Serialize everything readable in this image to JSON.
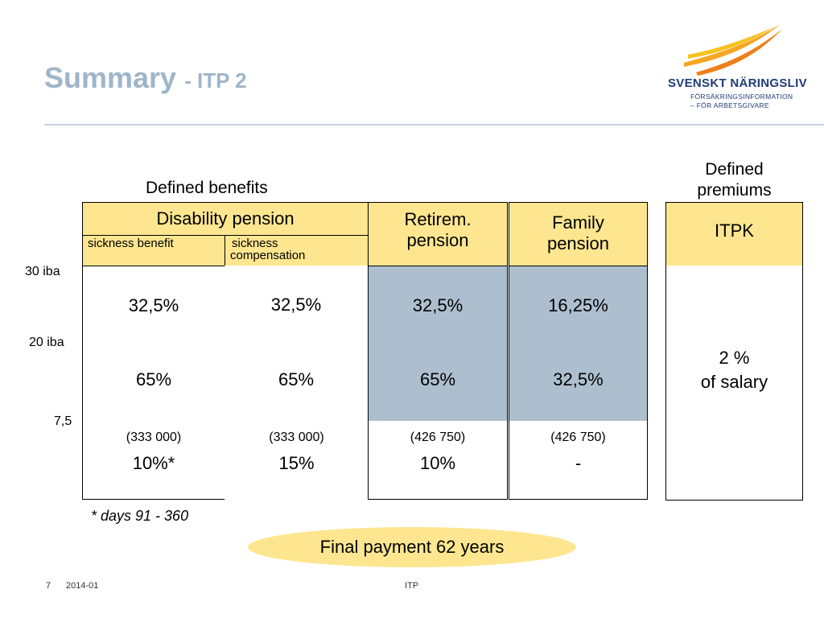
{
  "header": {
    "title_main": "Summary",
    "title_sub": "- ITP 2",
    "logo_name": "SVENSKT NÄRINGSLIV",
    "logo_sub1": "FÖRSÄKRINGSINFORMATION",
    "logo_sub2": "– FÖR ARBETSGIVARE"
  },
  "groups": {
    "defined_benefits": "Defined benefits",
    "defined_premiums_line1": "Defined",
    "defined_premiums_line2": "premiums"
  },
  "columns": {
    "disability": "Disability pension",
    "sickness_benefit": "sickness benefit",
    "sickness_comp_line1": "sickness",
    "sickness_comp_line2": "compensation",
    "retirement_line1": "Retirem.",
    "retirement_line2": "pension",
    "family_line1": "Family",
    "family_line2": "pension",
    "itpk": "ITPK"
  },
  "row_labels": {
    "r30": "30 iba",
    "r20": "20 iba",
    "r75": "7,5"
  },
  "rows": {
    "top": [
      "32,5%",
      "32,5%",
      "32,5%",
      "16,25%"
    ],
    "mid": [
      "65%",
      "65%",
      "65%",
      "32,5%"
    ],
    "bottom_amount": [
      "(333 000)",
      "(333 000)",
      "(426 750)",
      "(426 750)"
    ],
    "bottom_value": [
      "10%*",
      "15%",
      "10%",
      "-"
    ]
  },
  "itpk_value_line1": "2 %",
  "itpk_value_line2": "of salary",
  "footnote": "* days 91 - 360",
  "final_payment": "Final payment 62 years",
  "footer": {
    "page": "7",
    "date": "2014-01",
    "center": "ITP"
  },
  "colors": {
    "yellow": "#fde68f",
    "blue": "#adbfcf",
    "title": "#9fb5c9",
    "brand_blue": "#1f3c78",
    "swoosh": "#f5a623"
  }
}
